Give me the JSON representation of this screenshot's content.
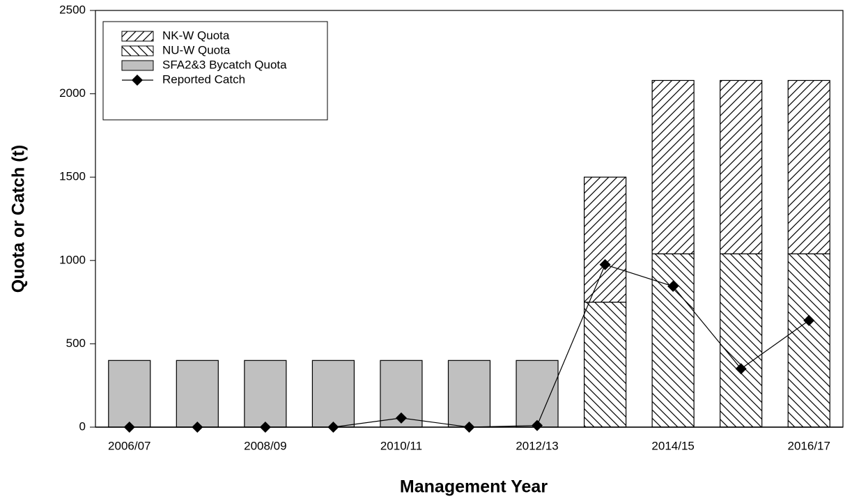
{
  "chart_data": {
    "type": "bar",
    "x_label": "Management Year",
    "y_label": "Quota or Catch (t)",
    "categories": [
      "2006/07",
      null,
      "2008/09",
      null,
      "2010/11",
      null,
      "2012/13",
      null,
      "2014/15",
      null,
      "2016/17"
    ],
    "stacked": true,
    "series": [
      {
        "name": "SFA2&3 Bycatch Quota",
        "type": "bar",
        "color": "#c0c0c0",
        "values": [
          400,
          400,
          400,
          400,
          400,
          400,
          400,
          null,
          null,
          null,
          null
        ]
      },
      {
        "name": "NU-W Quota",
        "type": "bar",
        "color": "#ffffff",
        "hatch": "backward",
        "values": [
          null,
          null,
          null,
          null,
          null,
          null,
          null,
          750,
          1040,
          1040,
          1040
        ]
      },
      {
        "name": "NK-W Quota",
        "type": "bar",
        "color": "#ffffff",
        "hatch": "forward",
        "values": [
          null,
          null,
          null,
          null,
          null,
          null,
          null,
          750,
          1040,
          1040,
          1040
        ]
      },
      {
        "name": "Reported Catch",
        "type": "line",
        "color": "#000000",
        "marker": "diamond",
        "values": [
          0,
          0,
          0,
          0,
          55,
          0,
          10,
          975,
          845,
          350,
          640
        ]
      }
    ],
    "legend_order": [
      2,
      1,
      0,
      3
    ],
    "legend": "upper left",
    "ylim": [
      0,
      2500
    ],
    "yticks": [
      0,
      500,
      1000,
      1500,
      2000,
      2500
    ],
    "grid": false
  }
}
